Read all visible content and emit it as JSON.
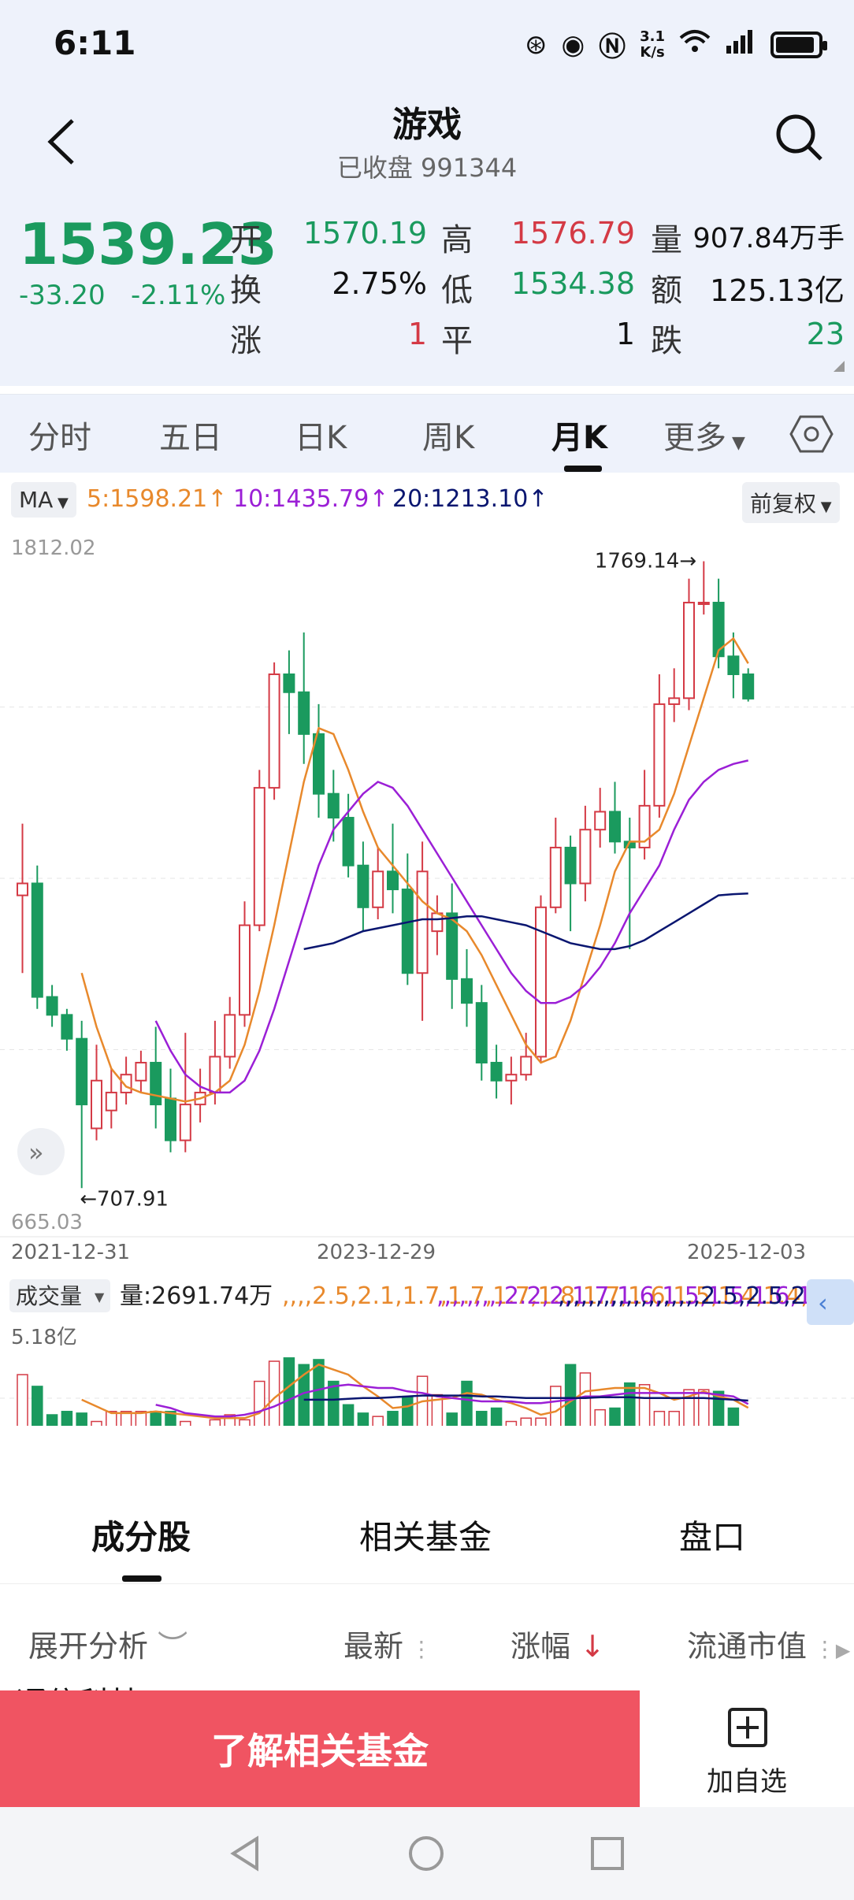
{
  "status": {
    "time": "6:11",
    "speed_top": "3.1",
    "speed_bottom": "K/s"
  },
  "header": {
    "title": "游戏",
    "status_label": "已收盘",
    "code": "991344"
  },
  "quote": {
    "price": "1539.23",
    "change": "-33.20",
    "change_pct": "-2.11%",
    "rows": [
      [
        {
          "label": "开",
          "value": "1570.19",
          "color": "green"
        },
        {
          "label": "高",
          "value": "1576.79",
          "color": "red"
        },
        {
          "label": "量",
          "value": "907.84万手",
          "color": "dark"
        }
      ],
      [
        {
          "label": "换",
          "value": "2.75%",
          "color": "dark"
        },
        {
          "label": "低",
          "value": "1534.38",
          "color": "green"
        },
        {
          "label": "额",
          "value": "125.13亿",
          "color": "dark"
        }
      ],
      [
        {
          "label": "涨",
          "value": "1",
          "color": "red"
        },
        {
          "label": "平",
          "value": "1",
          "color": "dark"
        },
        {
          "label": "跌",
          "value": "23",
          "color": "green"
        }
      ]
    ]
  },
  "period_tabs": [
    "分时",
    "五日",
    "日K",
    "周K",
    "月K",
    "更多"
  ],
  "active_period": "月K",
  "ma_bar": {
    "selector": "MA",
    "ma5": "5:1598.21",
    "ma10": "10:1435.79",
    "ma20": "20:1213.10",
    "adjust": "前复权"
  },
  "colors": {
    "up": "#d43a45",
    "down": "#1a9a5e",
    "ma5": "#e8892c",
    "ma10": "#9b1fd6",
    "ma20": "#0a1670",
    "accent": "#f05462"
  },
  "chart_data": {
    "type": "candlestick",
    "y_axis_top": "1812.02",
    "y_axis_bottom": "665.03",
    "max_label": "1769.14",
    "min_label": "707.91",
    "x_labels": [
      "2021-12-31",
      "2023-12-29",
      "2025-12-03"
    ],
    "ylim": [
      665.03,
      1812.02
    ],
    "candles": [
      [
        1210,
        1230,
        1080,
        1330
      ],
      [
        1230,
        1040,
        1020,
        1260
      ],
      [
        1040,
        1010,
        990,
        1060
      ],
      [
        1010,
        970,
        950,
        1020
      ],
      [
        970,
        860,
        720,
        1000
      ],
      [
        820,
        900,
        800,
        960
      ],
      [
        850,
        880,
        820,
        920
      ],
      [
        880,
        910,
        860,
        940
      ],
      [
        900,
        930,
        880,
        950
      ],
      [
        930,
        860,
        820,
        990
      ],
      [
        870,
        800,
        780,
        920
      ],
      [
        800,
        860,
        780,
        980
      ],
      [
        860,
        880,
        830,
        920
      ],
      [
        880,
        940,
        860,
        1000
      ],
      [
        940,
        1010,
        920,
        1040
      ],
      [
        1010,
        1160,
        990,
        1200
      ],
      [
        1160,
        1390,
        1150,
        1420
      ],
      [
        1390,
        1580,
        1370,
        1600
      ],
      [
        1580,
        1550,
        1480,
        1620
      ],
      [
        1550,
        1480,
        1430,
        1650
      ],
      [
        1480,
        1380,
        1340,
        1530
      ],
      [
        1380,
        1340,
        1300,
        1420
      ],
      [
        1340,
        1260,
        1240,
        1380
      ],
      [
        1260,
        1190,
        1150,
        1300
      ],
      [
        1190,
        1250,
        1170,
        1290
      ],
      [
        1250,
        1220,
        1180,
        1330
      ],
      [
        1220,
        1080,
        1060,
        1280
      ],
      [
        1080,
        1250,
        1000,
        1300
      ],
      [
        1150,
        1180,
        1110,
        1210
      ],
      [
        1180,
        1070,
        1020,
        1230
      ],
      [
        1070,
        1030,
        990,
        1120
      ],
      [
        1030,
        930,
        900,
        1060
      ],
      [
        930,
        900,
        870,
        960
      ],
      [
        900,
        910,
        860,
        940
      ],
      [
        910,
        940,
        900,
        980
      ],
      [
        940,
        1190,
        930,
        1210
      ],
      [
        1190,
        1290,
        1180,
        1340
      ],
      [
        1290,
        1230,
        1150,
        1310
      ],
      [
        1230,
        1320,
        1200,
        1360
      ],
      [
        1320,
        1350,
        1290,
        1390
      ],
      [
        1350,
        1300,
        1280,
        1400
      ],
      [
        1300,
        1290,
        1120,
        1340
      ],
      [
        1290,
        1360,
        1270,
        1420
      ],
      [
        1360,
        1530,
        1340,
        1580
      ],
      [
        1530,
        1540,
        1500,
        1590
      ],
      [
        1540,
        1700,
        1520,
        1740
      ],
      [
        1700,
        1700,
        1680,
        1769.14
      ],
      [
        1700,
        1610,
        1590,
        1740
      ],
      [
        1610,
        1580,
        1540,
        1650
      ],
      [
        1580,
        1539.23,
        1534.38,
        1590
      ]
    ],
    "ma5": [
      null,
      null,
      null,
      null,
      1080,
      990,
      920,
      890,
      880,
      875,
      870,
      865,
      870,
      880,
      900,
      960,
      1050,
      1160,
      1280,
      1400,
      1490,
      1480,
      1420,
      1350,
      1290,
      1260,
      1230,
      1200,
      1180,
      1170,
      1150,
      1110,
      1060,
      1010,
      960,
      930,
      940,
      1000,
      1080,
      1160,
      1250,
      1300,
      1300,
      1320,
      1380,
      1460,
      1540,
      1620,
      1640,
      1598.21
    ],
    "ma10": [
      null,
      null,
      null,
      null,
      null,
      null,
      null,
      null,
      null,
      1000,
      950,
      910,
      890,
      880,
      880,
      900,
      950,
      1020,
      1100,
      1180,
      1260,
      1320,
      1350,
      1380,
      1400,
      1390,
      1360,
      1320,
      1280,
      1240,
      1200,
      1160,
      1120,
      1080,
      1050,
      1030,
      1030,
      1040,
      1060,
      1090,
      1130,
      1180,
      1220,
      1260,
      1320,
      1370,
      1400,
      1420,
      1430,
      1435.79
    ],
    "ma20": [
      null,
      null,
      null,
      null,
      null,
      null,
      null,
      null,
      null,
      null,
      null,
      null,
      null,
      null,
      null,
      null,
      null,
      null,
      null,
      1120,
      1125,
      1130,
      1140,
      1150,
      1155,
      1160,
      1165,
      1170,
      1170,
      1172,
      1175,
      1175,
      1170,
      1165,
      1160,
      1150,
      1140,
      1130,
      1125,
      1120,
      1120,
      1125,
      1135,
      1150,
      1165,
      1180,
      1195,
      1210,
      1212,
      1213.1
    ],
    "volume": {
      "label": "成交量",
      "current": "量:2691.74万",
      "ma5": [
        null,
        null,
        null,
        null,
        2.5,
        2.1,
        1.7,
        1.7,
        1.7,
        1.8,
        1.7,
        1.6,
        1.5,
        1.4,
        1.4,
        1.4,
        1.7,
        2.6,
        3.3,
        4.0,
        4.6,
        4.3,
        4.0,
        3.3,
        2.7,
        2.0,
        2.1,
        2.4,
        2.5,
        2.6,
        2.9,
        2.8,
        2.5,
        2.3,
        2.0,
        1.6,
        1.8,
        2.4,
        3.0,
        3.1,
        3.2,
        3.2,
        3.2,
        2.9,
        2.5,
        2.7,
        3.0,
        2.7,
        2.5,
        2.02
      ],
      "ma10": [
        null,
        null,
        null,
        null,
        null,
        null,
        null,
        null,
        null,
        2.2,
        2.0,
        1.7,
        1.6,
        1.5,
        1.5,
        1.6,
        1.8,
        2.1,
        2.5,
        2.9,
        3.1,
        3.3,
        3.4,
        3.3,
        3.2,
        3.2,
        3.0,
        2.9,
        2.7,
        2.6,
        2.5,
        2.4,
        2.4,
        2.4,
        2.3,
        2.3,
        2.4,
        2.5,
        2.7,
        2.7,
        2.8,
        2.9,
        2.9,
        2.9,
        2.9,
        2.9,
        2.9,
        2.8,
        2.7,
        2.24
      ],
      "ma20": [
        null,
        null,
        null,
        null,
        null,
        null,
        null,
        null,
        null,
        null,
        null,
        null,
        null,
        null,
        null,
        null,
        null,
        null,
        null,
        2.5,
        2.5,
        2.5,
        2.55,
        2.6,
        2.6,
        2.65,
        2.7,
        2.75,
        2.75,
        2.75,
        2.75,
        2.7,
        2.7,
        2.65,
        2.6,
        2.6,
        2.6,
        2.6,
        2.6,
        2.65,
        2.65,
        2.65,
        2.6,
        2.6,
        2.6,
        2.6,
        2.6,
        2.55,
        2.5,
        2.45
      ],
      "y_top": "5.18亿",
      "ylim": [
        0,
        5.18
      ],
      "bars": [
        4.0,
        3.3,
        1.6,
        1.8,
        1.7,
        1.2,
        1.8,
        1.8,
        1.8,
        1.8,
        1.8,
        1.2,
        0.8,
        1.3,
        1.6,
        1.3,
        3.6,
        4.8,
        5.0,
        4.6,
        4.9,
        3.6,
        2.2,
        1.7,
        1.5,
        1.8,
        2.7,
        3.9,
        2.8,
        1.7,
        3.6,
        1.8,
        2.0,
        1.2,
        1.4,
        1.4,
        3.3,
        4.6,
        4.1,
        1.9,
        2.0,
        3.5,
        3.4,
        1.8,
        1.8,
        3.1,
        3.1,
        3.0,
        2.0,
        0.2
      ]
    }
  },
  "bottom_tabs": [
    "成分股",
    "相关基金",
    "盘口"
  ],
  "list_header": {
    "expand": "展开分析",
    "latest": "最新",
    "change": "涨幅",
    "cap": "流通市值"
  },
  "partial_row": "通信科技",
  "cta": {
    "label": "了解相关基金"
  },
  "fav": {
    "label": "加自选"
  }
}
